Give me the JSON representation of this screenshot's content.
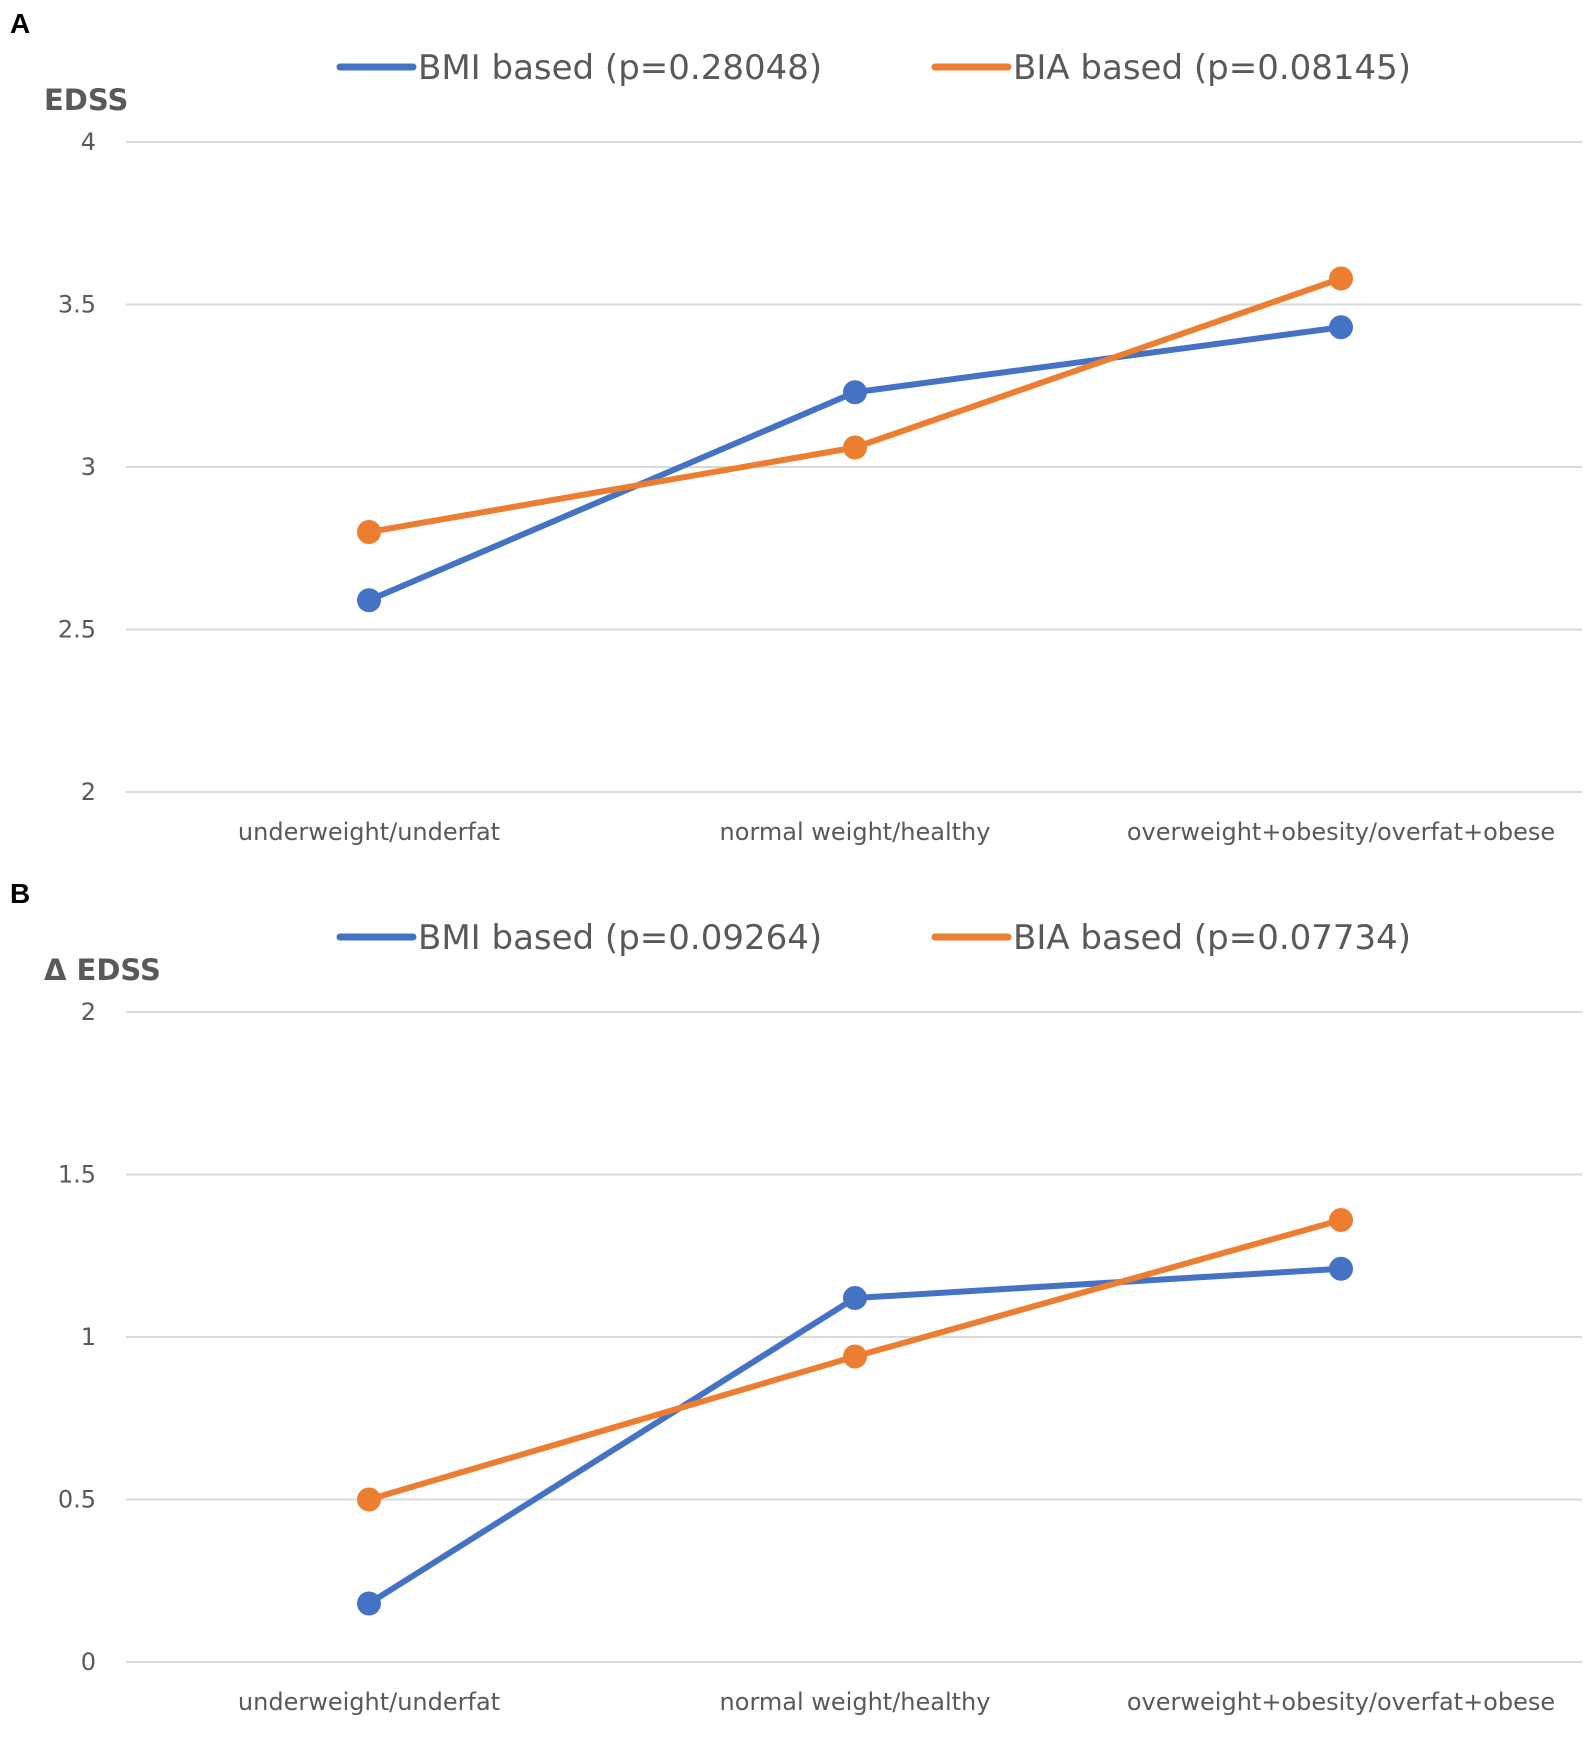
{
  "chart_data": [
    {
      "panel": "A",
      "type": "line",
      "ylabel": "EDSS",
      "xlabel": "",
      "categories": [
        "underweight/underfat",
        "normal weight/healthy",
        "overweight+obesity/overfat+obese"
      ],
      "ylim": [
        2,
        4
      ],
      "yticks": [
        "2",
        "2.5",
        "3",
        "3.5",
        "4"
      ],
      "grid": true,
      "legend_position": "top",
      "series": [
        {
          "name": "BMI based (p=0.28048)",
          "color": "#4472c4",
          "values": [
            2.59,
            3.23,
            3.43
          ]
        },
        {
          "name": "BIA based (p=0.08145)",
          "color": "#ed7d31",
          "values": [
            2.8,
            3.06,
            3.58
          ]
        }
      ]
    },
    {
      "panel": "B",
      "type": "line",
      "ylabel": "Δ EDSS",
      "xlabel": "",
      "categories": [
        "underweight/underfat",
        "normal weight/healthy",
        "overweight+obesity/overfat+obese"
      ],
      "ylim": [
        0,
        2
      ],
      "yticks": [
        "0",
        "0.5",
        "1",
        "1.5",
        "2"
      ],
      "grid": true,
      "legend_position": "top",
      "series": [
        {
          "name": "BMI based (p=0.09264)",
          "color": "#4472c4",
          "values": [
            0.18,
            1.12,
            1.21
          ]
        },
        {
          "name": "BIA based (p=0.07734)",
          "color": "#ed7d31",
          "values": [
            0.5,
            0.94,
            1.36
          ]
        }
      ]
    }
  ]
}
